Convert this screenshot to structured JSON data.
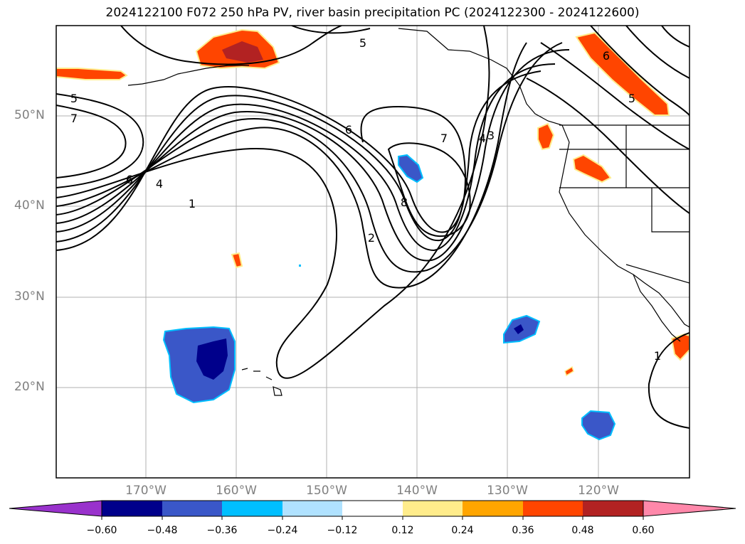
{
  "title": "2024122100 F072 250 hPa PV, river basin precipitation PC (2024122300 - 2024122600)",
  "lat_labels": [
    "50°N",
    "40°N",
    "30°N",
    "20°N"
  ],
  "lon_labels": [
    "170°W",
    "160°W",
    "150°W",
    "140°W",
    "130°W",
    "120°W"
  ],
  "contour_labels": [
    "5",
    "7",
    "6",
    "4",
    "1",
    "6",
    "7",
    "8",
    "2",
    "4",
    "3",
    "5",
    "6",
    "5",
    "1"
  ],
  "colorbar": {
    "ticks": [
      "−0.60",
      "−0.48",
      "−0.36",
      "−0.24",
      "−0.12",
      "0.12",
      "0.24",
      "0.36",
      "0.48",
      "0.60"
    ],
    "colors": [
      "#9932cc",
      "#00008b",
      "#3a57c8",
      "#00bfff",
      "#b0e2ff",
      "#ffffff",
      "#ffec8b",
      "#ffa500",
      "#ff4500",
      "#b22222",
      "#ff88aa"
    ]
  }
}
